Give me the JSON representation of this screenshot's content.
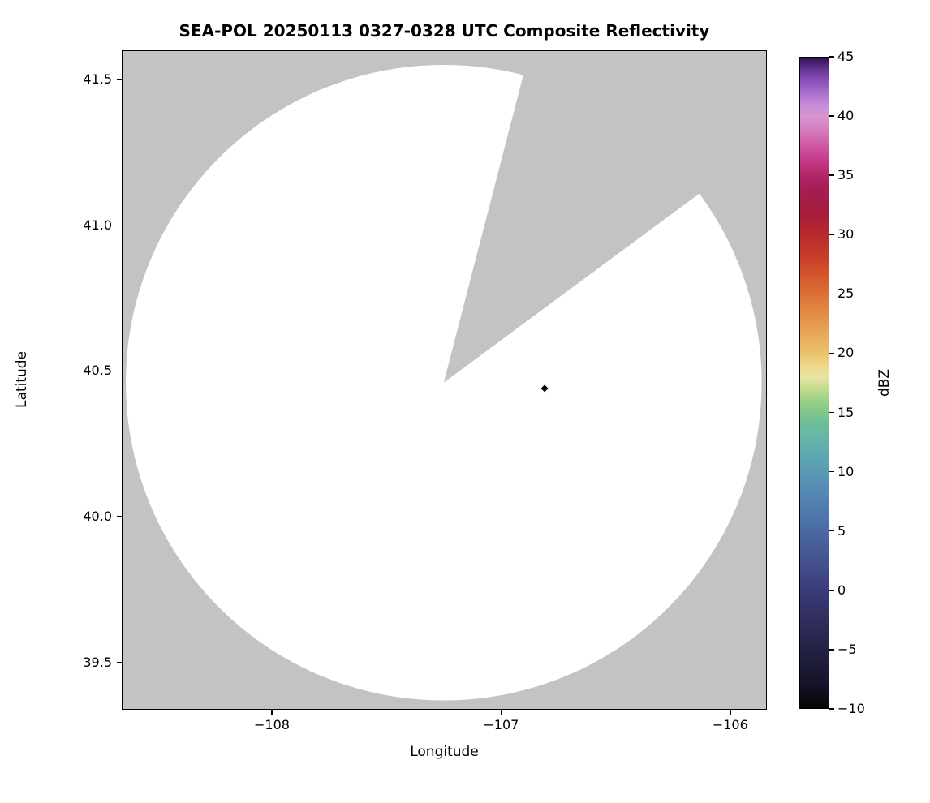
{
  "chart_data": {
    "type": "radar-coverage-map",
    "title": "SEA-POL 20250113 0327-0328 UTC Composite Reflectivity",
    "xlabel": "Longitude",
    "ylabel": "Latitude",
    "xlim": [
      -108.655,
      -105.84
    ],
    "ylim": [
      39.338,
      41.6
    ],
    "xticks": [
      {
        "value": -108,
        "label": "−108"
      },
      {
        "value": -107,
        "label": "−107"
      },
      {
        "value": -106,
        "label": "−106"
      }
    ],
    "yticks": [
      {
        "value": 39.5,
        "label": "39.5"
      },
      {
        "value": 40.0,
        "label": "40.0"
      },
      {
        "value": 40.5,
        "label": "40.5"
      },
      {
        "value": 41.0,
        "label": "41.0"
      },
      {
        "value": 41.5,
        "label": "41.5"
      }
    ],
    "grid": false,
    "map": {
      "background_color": "#c3c3c3",
      "coverage_color": "#ffffff",
      "radar_lon": -107.25,
      "radar_lat": 40.46,
      "coverage_radius_deg_lat": 1.09,
      "missing_sector_azimuth_deg": [
        14.5,
        53.5
      ],
      "marker": {
        "lon": -106.81,
        "lat": 40.44,
        "shape": "diamond",
        "color": "#000000"
      },
      "echoes": []
    },
    "colorbar": {
      "label": "dBZ",
      "min": -10,
      "max": 45,
      "ticks": [
        {
          "value": -10,
          "label": "−10"
        },
        {
          "value": -5,
          "label": "−5"
        },
        {
          "value": 0,
          "label": "0"
        },
        {
          "value": 5,
          "label": "5"
        },
        {
          "value": 10,
          "label": "10"
        },
        {
          "value": 15,
          "label": "15"
        },
        {
          "value": 20,
          "label": "20"
        },
        {
          "value": 25,
          "label": "25"
        },
        {
          "value": 30,
          "label": "30"
        },
        {
          "value": 35,
          "label": "35"
        },
        {
          "value": 40,
          "label": "40"
        },
        {
          "value": 45,
          "label": "45"
        }
      ],
      "stops": [
        {
          "value": -10,
          "color": "#060606"
        },
        {
          "value": -8,
          "color": "#141327"
        },
        {
          "value": -6,
          "color": "#1f1d3b"
        },
        {
          "value": -4,
          "color": "#292750"
        },
        {
          "value": -2,
          "color": "#323164"
        },
        {
          "value": 0,
          "color": "#3b3c78"
        },
        {
          "value": 2,
          "color": "#424e8b"
        },
        {
          "value": 4,
          "color": "#48609c"
        },
        {
          "value": 6,
          "color": "#4e73aa"
        },
        {
          "value": 8,
          "color": "#5487b2"
        },
        {
          "value": 10,
          "color": "#5a9bb4"
        },
        {
          "value": 12,
          "color": "#62aeae"
        },
        {
          "value": 14,
          "color": "#6cbd9b"
        },
        {
          "value": 15,
          "color": "#80c78b"
        },
        {
          "value": 16,
          "color": "#9ad184"
        },
        {
          "value": 17,
          "color": "#c3dc8d"
        },
        {
          "value": 18,
          "color": "#e7e4a3"
        },
        {
          "value": 19,
          "color": "#eed689"
        },
        {
          "value": 20,
          "color": "#ecc26d"
        },
        {
          "value": 22,
          "color": "#e7a253"
        },
        {
          "value": 24,
          "color": "#e08140"
        },
        {
          "value": 26,
          "color": "#d75f30"
        },
        {
          "value": 28,
          "color": "#ca3f29"
        },
        {
          "value": 30,
          "color": "#b92a2d"
        },
        {
          "value": 32,
          "color": "#a41c3c"
        },
        {
          "value": 34,
          "color": "#a71d56"
        },
        {
          "value": 35,
          "color": "#b52569"
        },
        {
          "value": 36,
          "color": "#c13380"
        },
        {
          "value": 37,
          "color": "#cb4a97"
        },
        {
          "value": 38,
          "color": "#d264ab"
        },
        {
          "value": 39,
          "color": "#d77fbe"
        },
        {
          "value": 40,
          "color": "#d795cf"
        },
        {
          "value": 41,
          "color": "#c88bd8"
        },
        {
          "value": 42,
          "color": "#ab70cf"
        },
        {
          "value": 43,
          "color": "#8a52b8"
        },
        {
          "value": 44,
          "color": "#653594"
        },
        {
          "value": 45,
          "color": "#2f1052"
        }
      ]
    }
  }
}
